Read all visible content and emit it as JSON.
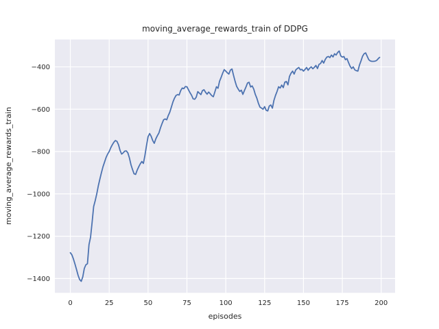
{
  "chart_data": {
    "type": "line",
    "title": "moving_average_rewards_train of DDPG",
    "xlabel": "episodes",
    "ylabel": "moving_average_rewards_train",
    "legend": false,
    "grid": true,
    "x_start": 0,
    "x_step": 1,
    "xlim": [
      -9.95,
      208.95
    ],
    "ylim": [
      -1467.4,
      -270.6
    ],
    "x_ticks": [
      0,
      25,
      50,
      75,
      100,
      125,
      150,
      175,
      200
    ],
    "x_tick_labels": [
      "0",
      "25",
      "50",
      "75",
      "100",
      "125",
      "150",
      "175",
      "200"
    ],
    "y_ticks": [
      -400,
      -600,
      -800,
      -1000,
      -1200,
      -1400
    ],
    "y_tick_labels": [
      "−400",
      "−600",
      "−800",
      "−1000",
      "−1200",
      "−1400"
    ],
    "series": [
      {
        "name": "moving_average_rewards_train",
        "color": "#4c72b0",
        "values": [
          -1278,
          -1288,
          -1308,
          -1332,
          -1358,
          -1385,
          -1405,
          -1413,
          -1392,
          -1352,
          -1335,
          -1330,
          -1240,
          -1205,
          -1135,
          -1060,
          -1032,
          -1000,
          -962,
          -930,
          -900,
          -872,
          -850,
          -828,
          -812,
          -800,
          -782,
          -768,
          -756,
          -748,
          -752,
          -768,
          -795,
          -812,
          -806,
          -798,
          -797,
          -806,
          -830,
          -862,
          -885,
          -905,
          -908,
          -888,
          -872,
          -858,
          -847,
          -856,
          -818,
          -772,
          -730,
          -715,
          -728,
          -748,
          -761,
          -740,
          -725,
          -712,
          -688,
          -668,
          -650,
          -646,
          -650,
          -630,
          -614,
          -590,
          -566,
          -548,
          -535,
          -531,
          -533,
          -512,
          -500,
          -503,
          -493,
          -494,
          -508,
          -522,
          -534,
          -551,
          -553,
          -543,
          -517,
          -524,
          -531,
          -512,
          -508,
          -520,
          -529,
          -519,
          -527,
          -536,
          -541,
          -518,
          -494,
          -501,
          -468,
          -450,
          -430,
          -413,
          -420,
          -428,
          -434,
          -415,
          -410,
          -440,
          -468,
          -492,
          -505,
          -516,
          -510,
          -530,
          -512,
          -495,
          -476,
          -473,
          -495,
          -490,
          -505,
          -530,
          -548,
          -572,
          -590,
          -595,
          -600,
          -588,
          -605,
          -608,
          -585,
          -580,
          -595,
          -558,
          -535,
          -516,
          -494,
          -500,
          -486,
          -498,
          -472,
          -469,
          -485,
          -445,
          -430,
          -420,
          -434,
          -415,
          -408,
          -403,
          -414,
          -412,
          -420,
          -412,
          -403,
          -416,
          -406,
          -400,
          -409,
          -402,
          -393,
          -408,
          -388,
          -384,
          -370,
          -382,
          -365,
          -354,
          -351,
          -356,
          -344,
          -353,
          -338,
          -344,
          -332,
          -325,
          -348,
          -354,
          -351,
          -366,
          -361,
          -380,
          -397,
          -408,
          -400,
          -414,
          -418,
          -420,
          -392,
          -372,
          -350,
          -338,
          -334,
          -350,
          -366,
          -372,
          -374,
          -374,
          -373,
          -370,
          -362,
          -355
        ]
      }
    ],
    "style": {
      "fig_bg": "#ffffff",
      "axes_bg": "#eaeaf2",
      "grid_color": "#ffffff",
      "text_color": "#262626",
      "line_color": "#4c72b0"
    }
  }
}
